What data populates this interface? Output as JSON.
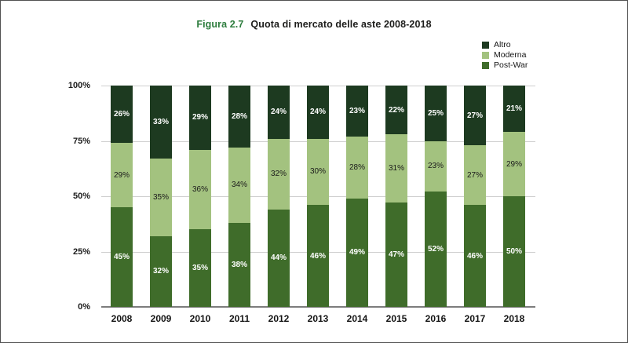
{
  "title": {
    "prefix": "Figura 2.7",
    "text": "Quota di mercato delle aste 2008-2018",
    "prefix_color": "#2e7d3e"
  },
  "legend": {
    "items": [
      {
        "label": "Altro",
        "color": "#1d3a20"
      },
      {
        "label": "Moderna",
        "color": "#a3c27f"
      },
      {
        "label": "Post-War",
        "color": "#3f6c2a"
      }
    ]
  },
  "chart_data": {
    "type": "bar",
    "stacked": true,
    "title": "Figura 2.7 Quota di mercato delle aste 2008-2018",
    "categories": [
      "2008",
      "2009",
      "2010",
      "2011",
      "2012",
      "2013",
      "2014",
      "2015",
      "2016",
      "2017",
      "2018"
    ],
    "series": [
      {
        "name": "Post-War",
        "color": "#3f6c2a",
        "label_style": "bold-white",
        "values": [
          45,
          32,
          35,
          38,
          44,
          46,
          49,
          47,
          52,
          46,
          50
        ]
      },
      {
        "name": "Moderna",
        "color": "#a3c27f",
        "label_style": "dark",
        "values": [
          29,
          35,
          36,
          34,
          32,
          30,
          28,
          31,
          23,
          27,
          29
        ]
      },
      {
        "name": "Altro",
        "color": "#1d3a20",
        "label_style": "bold-white",
        "values": [
          26,
          33,
          29,
          28,
          24,
          24,
          23,
          22,
          25,
          27,
          21
        ]
      }
    ],
    "value_suffix": "%",
    "y_axis": {
      "ticks": [
        "0%",
        "25%",
        "50%",
        "75%",
        "100%"
      ],
      "min": 0,
      "max": 100
    },
    "xlabel": "",
    "ylabel": "",
    "grid": true,
    "legend_position": "top-right",
    "grid_color": "#cfcfcf",
    "axis_color": "#7d7d7d"
  }
}
